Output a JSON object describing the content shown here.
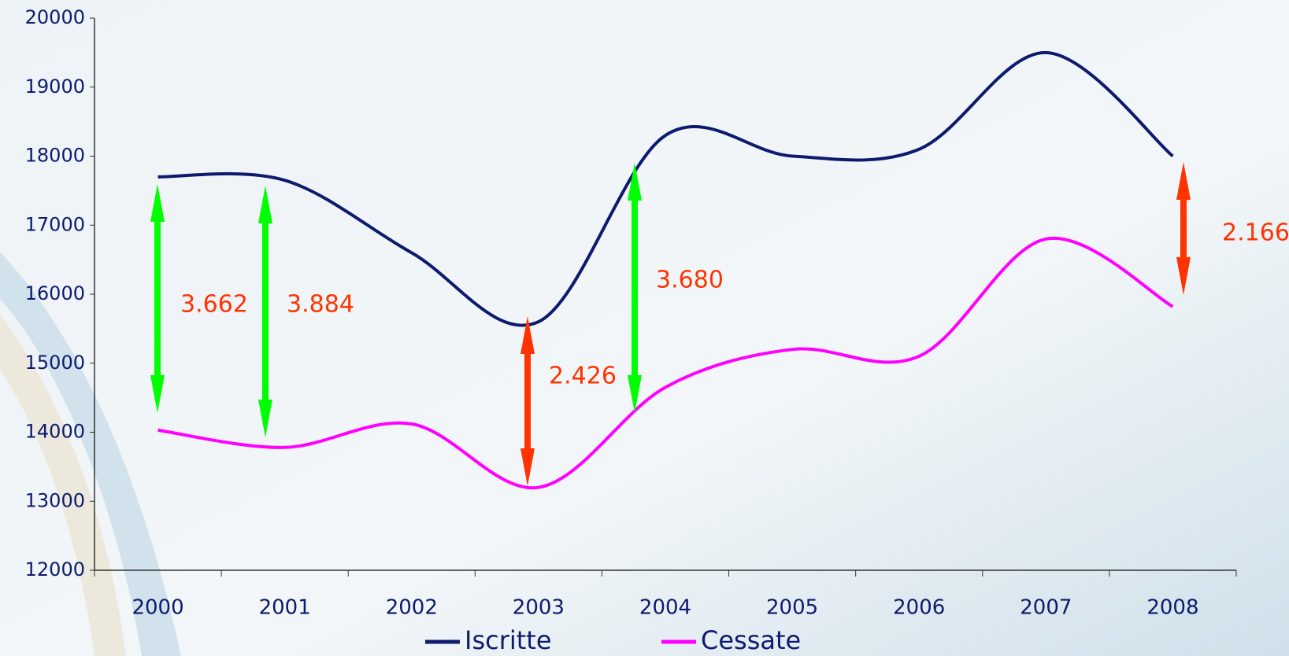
{
  "chart_data": {
    "type": "line",
    "categories": [
      "2000",
      "2001",
      "2002",
      "2003",
      "2004",
      "2005",
      "2006",
      "2007",
      "2008"
    ],
    "series": [
      {
        "name": "Iscritte",
        "color": "#0d1a6e",
        "values": [
          17700,
          17650,
          16600,
          15600,
          18300,
          18000,
          18100,
          19500,
          18000
        ]
      },
      {
        "name": "Cessate",
        "color": "#ff00ff",
        "values": [
          14030,
          13780,
          14120,
          13200,
          14650,
          15200,
          15100,
          16800,
          15820
        ]
      }
    ],
    "ylim": [
      12000,
      20000
    ],
    "yticks": [
      12000,
      13000,
      14000,
      15000,
      16000,
      17000,
      18000,
      19000,
      20000
    ],
    "annotations": [
      {
        "text": "3.662",
        "color": "#00ff00"
      },
      {
        "text": "3.884",
        "color": "#00ff00"
      },
      {
        "text": "2.426",
        "color": "#ff3300"
      },
      {
        "text": "3.680",
        "color": "#00ff00"
      },
      {
        "text": "2.166",
        "color": "#ff3300"
      }
    ]
  }
}
